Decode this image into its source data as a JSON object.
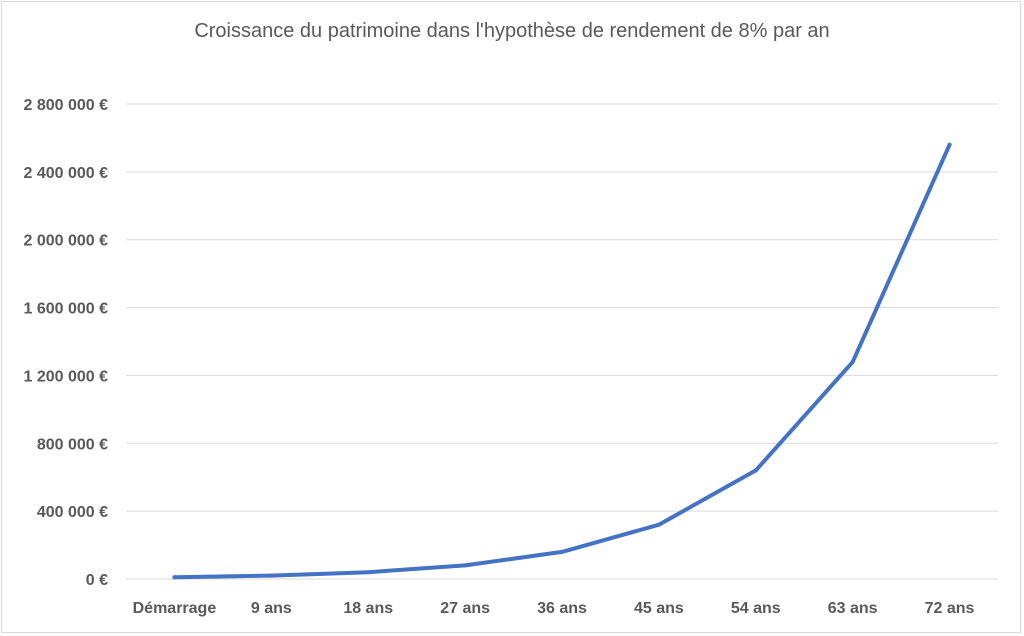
{
  "chart_data": {
    "type": "line",
    "title": "Croissance du patrimoine dans l'hypothèse de rendement de 8% par an",
    "xlabel": "",
    "ylabel": "",
    "categories": [
      "Démarrage",
      "9 ans",
      "18 ans",
      "27 ans",
      "36 ans",
      "45 ans",
      "54 ans",
      "63 ans",
      "72 ans"
    ],
    "series": [
      {
        "values": [
          10000,
          20000,
          40000,
          80000,
          160000,
          320000,
          640000,
          1280000,
          2560000
        ]
      }
    ],
    "ylim": [
      0,
      2800000
    ],
    "yticks": [
      0,
      400000,
      800000,
      1200000,
      1600000,
      2000000,
      2400000,
      2800000
    ],
    "ytick_labels": [
      "0 €",
      "400 000 €",
      "800 000 €",
      "1 200 000 €",
      "1 600 000 €",
      "2 000 000 €",
      "2 400 000 €",
      "2 800 000 €"
    ],
    "grid": true,
    "line_color": "#4472c4",
    "grid_color": "#d9d9d9"
  }
}
